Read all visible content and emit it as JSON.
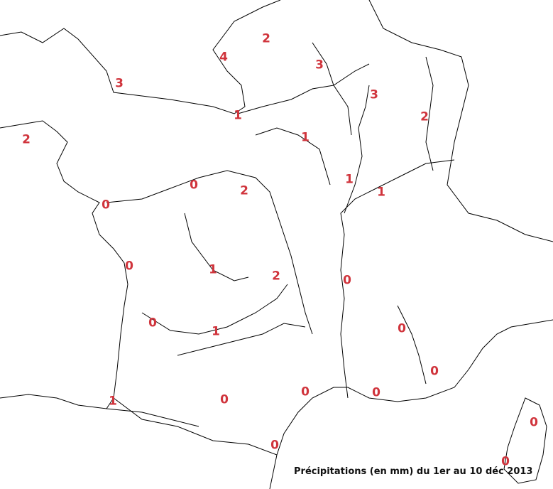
{
  "caption": "Précipitations (en mm) du 1er au 10 déc 2013",
  "value_color": "#d0343c",
  "stations": [
    "2",
    "4",
    "3",
    "3",
    "3",
    "2",
    "1",
    "2",
    "1",
    "1",
    "1",
    "0",
    "2",
    "0",
    "0",
    "1",
    "2",
    "0",
    "0",
    "1",
    "0",
    "0",
    "0",
    "0",
    "1",
    "0",
    "0",
    "0",
    "0"
  ]
}
